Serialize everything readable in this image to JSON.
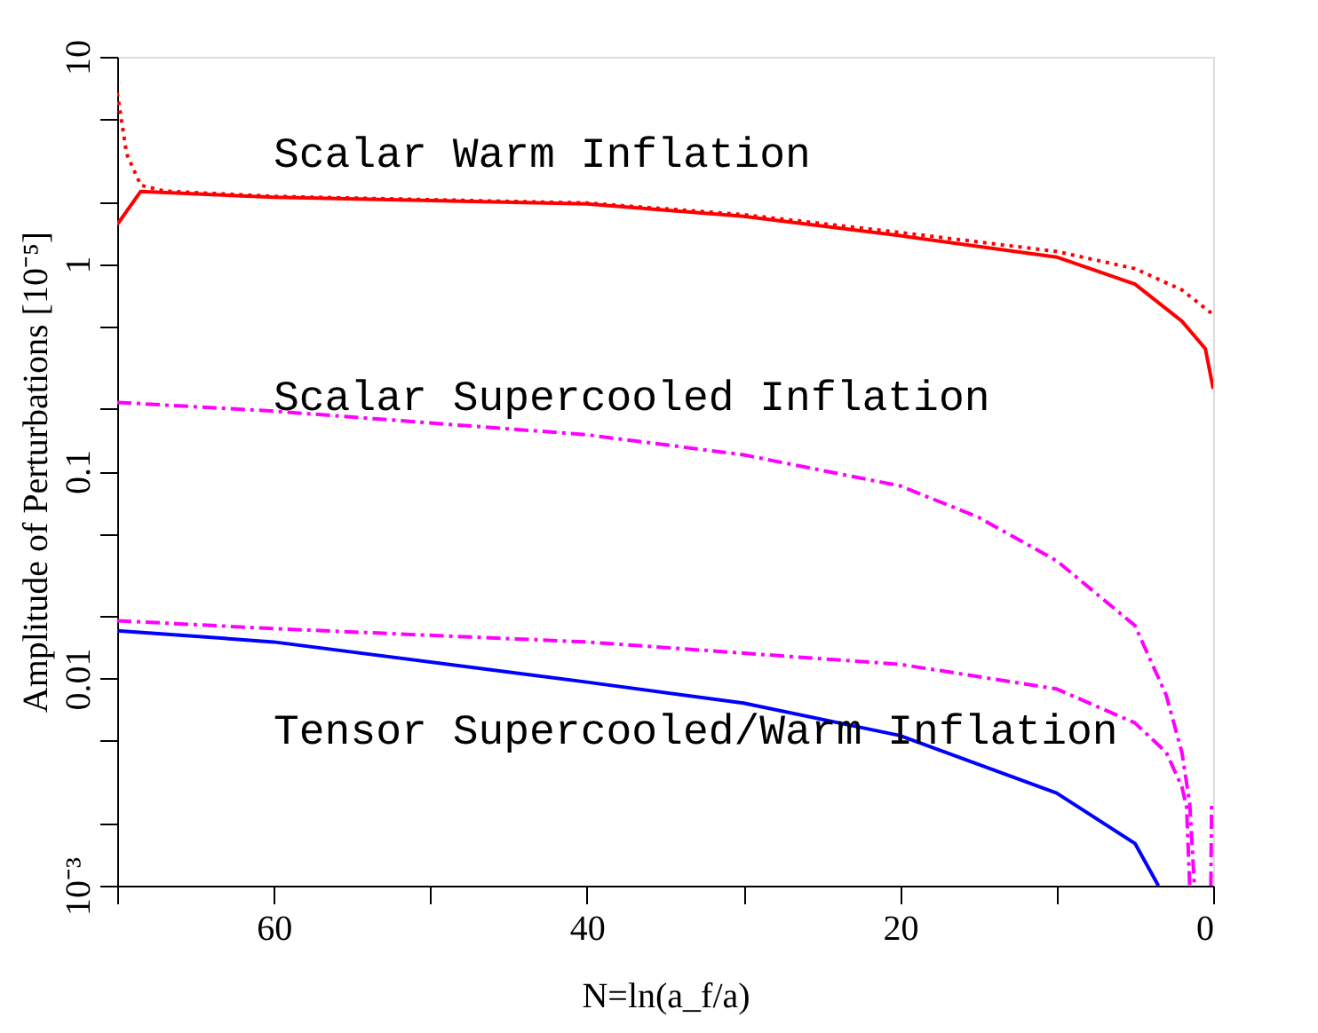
{
  "chart_data": {
    "type": "line",
    "xlabel": "N=ln(a_f/a)",
    "ylabel": "Amplitude of Perturbations [10⁻⁵]",
    "log": "y",
    "grid": false,
    "xlim": [
      70,
      0
    ],
    "xticks": [
      {
        "value": 70,
        "label": null
      },
      60,
      {
        "value": 50,
        "label": null
      },
      40,
      {
        "value": 30,
        "label": null
      },
      20,
      {
        "value": 10,
        "label": null
      },
      0
    ],
    "ylim": [
      0.001,
      10
    ],
    "yticks": [
      {
        "value": 0.001,
        "label": "10⁻³"
      },
      {
        "value": 0.002,
        "label": null
      },
      {
        "value": 0.005,
        "label": null
      },
      0.01,
      {
        "value": 0.02,
        "label": null
      },
      {
        "value": 0.05,
        "label": null
      },
      0.1,
      {
        "value": 0.2,
        "label": null
      },
      {
        "value": 0.5,
        "label": null
      },
      1,
      {
        "value": 2,
        "label": null
      },
      {
        "value": 5,
        "label": null
      },
      10
    ],
    "series": [
      {
        "color": "#ff0000",
        "line_style": "solid",
        "x": [
          70,
          68.5,
          60,
          40,
          30,
          20,
          10,
          5,
          2,
          0.5,
          0
        ],
        "values": [
          1.55,
          2.24,
          2.1,
          1.95,
          1.7,
          1.37,
          1.08,
          0.8,
          0.53,
          0.39,
          0.25
        ]
      },
      {
        "color": "#ff0000",
        "line_style": "dotted",
        "x": [
          70,
          69.4,
          68.5,
          67,
          60,
          40,
          30,
          20,
          10,
          5,
          2,
          0
        ],
        "values": [
          6.7,
          3.4,
          2.4,
          2.25,
          2.12,
          1.97,
          1.73,
          1.42,
          1.15,
          0.95,
          0.75,
          0.57
        ]
      },
      {
        "color": "#ff00ff",
        "line_style": "dashed",
        "x": [
          70,
          60,
          40,
          30,
          20,
          15,
          10,
          5,
          3,
          2,
          1.5,
          1.2
        ],
        "values": [
          0.215,
          0.195,
          0.15,
          0.12,
          0.085,
          0.06,
          0.037,
          0.018,
          0.0083,
          0.0044,
          0.0025,
          0.001
        ]
      },
      {
        "color": "#ff00ff",
        "line_style": "dashed",
        "x": [
          70,
          60,
          40,
          20,
          10,
          5,
          3,
          2,
          1.7,
          1.5
        ],
        "values": [
          0.019,
          0.0174,
          0.015,
          0.0117,
          0.0089,
          0.0061,
          0.0044,
          0.003,
          0.0024,
          0.001
        ]
      },
      {
        "color": "#ff00ff",
        "line_style": "dashed",
        "x": [
          0.15,
          0.1
        ],
        "values": [
          0.001,
          0.0025
        ]
      },
      {
        "color": "#0000ff",
        "line_style": "solid",
        "x": [
          70,
          60,
          40,
          30,
          20,
          10,
          5,
          3.5
        ],
        "values": [
          0.017,
          0.015,
          0.0096,
          0.0076,
          0.0053,
          0.0028,
          0.0016,
          0.001
        ]
      }
    ],
    "annotations": [
      "Scalar Warm Inflation",
      "Scalar Supercooled Inflation",
      "Tensor Supercooled/Warm Inflation"
    ]
  }
}
